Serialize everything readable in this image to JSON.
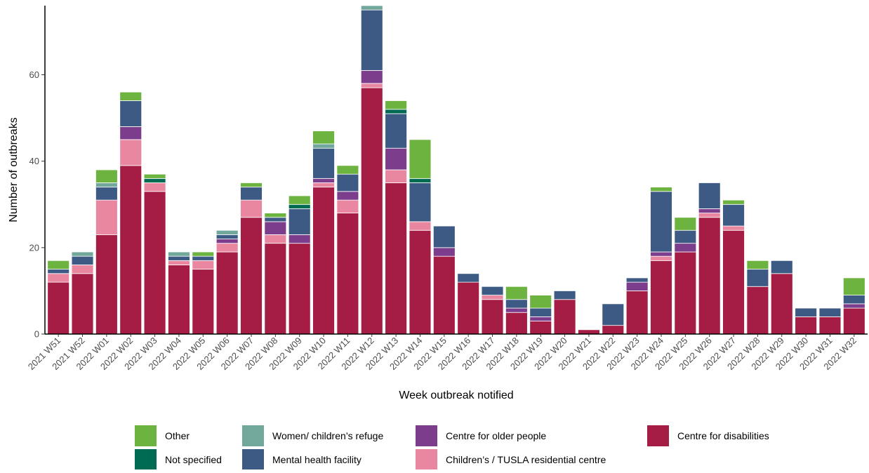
{
  "chart_data": {
    "type": "bar",
    "stacked": true,
    "title": "",
    "xlabel": "Week outbreak notified",
    "ylabel": "Number of outbreaks",
    "ylim": [
      0,
      76
    ],
    "yticks": [
      0,
      20,
      40,
      60
    ],
    "grid": false,
    "legend_position": "bottom",
    "categories": [
      "2021 W51",
      "2021 W52",
      "2022 W01",
      "2022 W02",
      "2022 W03",
      "2022 W04",
      "2022 W05",
      "2022 W06",
      "2022 W07",
      "2022 W08",
      "2022 W09",
      "2022 W10",
      "2022 W11",
      "2022 W12",
      "2022 W13",
      "2022 W14",
      "2022 W15",
      "2022 W16",
      "2022 W17",
      "2022 W18",
      "2022 W19",
      "2022 W20",
      "2022 W21",
      "2022 W22",
      "2022 W23",
      "2022 W24",
      "2022 W25",
      "2022 W26",
      "2022 W27",
      "2022 W28",
      "2022 W29",
      "2022 W30",
      "2022 W31",
      "2022 W32"
    ],
    "series": [
      {
        "name": "Centre for disabilities",
        "color": "#a51d44",
        "values": [
          12,
          14,
          23,
          39,
          33,
          16,
          15,
          19,
          27,
          21,
          21,
          34,
          28,
          57,
          35,
          24,
          18,
          12,
          8,
          5,
          3,
          8,
          1,
          2,
          10,
          17,
          19,
          27,
          24,
          11,
          14,
          4,
          4,
          6
        ]
      },
      {
        "name": "Children’s / TUSLA residential centre",
        "color": "#e8879f",
        "values": [
          2,
          2,
          8,
          6,
          2,
          1,
          2,
          2,
          4,
          2,
          0,
          1,
          3,
          1,
          3,
          2,
          0,
          0,
          1,
          0,
          0,
          0,
          0,
          0,
          0,
          1,
          0,
          1,
          1,
          0,
          0,
          0,
          0,
          0
        ]
      },
      {
        "name": "Centre for older people",
        "color": "#7c3d8c",
        "values": [
          0,
          0,
          0,
          3,
          0,
          0,
          0,
          1,
          0,
          3,
          2,
          1,
          2,
          3,
          5,
          0,
          2,
          0,
          0,
          1,
          1,
          0,
          0,
          0,
          2,
          1,
          2,
          1,
          0,
          0,
          0,
          0,
          0,
          1
        ]
      },
      {
        "name": "Mental health facility",
        "color": "#3d5a85",
        "values": [
          1,
          2,
          3,
          6,
          0,
          1,
          1,
          1,
          3,
          1,
          6,
          7,
          4,
          14,
          8,
          9,
          5,
          2,
          2,
          2,
          2,
          2,
          0,
          5,
          1,
          14,
          3,
          6,
          5,
          4,
          3,
          2,
          2,
          2
        ]
      },
      {
        "name": "Not specified",
        "color": "#006b53",
        "values": [
          0,
          0,
          0,
          0,
          1,
          0,
          0,
          0,
          0,
          0,
          1,
          0,
          0,
          0,
          1,
          1,
          0,
          0,
          0,
          0,
          0,
          0,
          0,
          0,
          0,
          0,
          0,
          0,
          0,
          0,
          0,
          0,
          0,
          0
        ]
      },
      {
        "name": "Women/ children’s refuge",
        "color": "#72a89b",
        "values": [
          0,
          1,
          1,
          0,
          0,
          1,
          0,
          1,
          0,
          0,
          0,
          1,
          0,
          1,
          0,
          0,
          0,
          0,
          0,
          0,
          0,
          0,
          0,
          0,
          0,
          0,
          0,
          0,
          0,
          0,
          0,
          0,
          0,
          0
        ]
      },
      {
        "name": "Other",
        "color": "#6cb33f",
        "values": [
          2,
          0,
          3,
          2,
          1,
          0,
          1,
          0,
          1,
          1,
          2,
          3,
          2,
          0,
          2,
          9,
          0,
          0,
          0,
          3,
          3,
          0,
          0,
          0,
          0,
          1,
          3,
          0,
          1,
          2,
          0,
          0,
          0,
          4
        ]
      }
    ],
    "legend": [
      {
        "name": "Other",
        "color": "#6cb33f"
      },
      {
        "name": "Not specified",
        "color": "#006b53"
      },
      {
        "name": "Women/ children’s refuge",
        "color": "#72a89b"
      },
      {
        "name": "Mental health facility",
        "color": "#3d5a85"
      },
      {
        "name": "Centre for older people",
        "color": "#7c3d8c"
      },
      {
        "name": "Children’s / TUSLA residential centre",
        "color": "#e8879f"
      },
      {
        "name": "Centre for disabilities",
        "color": "#a51d44"
      }
    ]
  }
}
